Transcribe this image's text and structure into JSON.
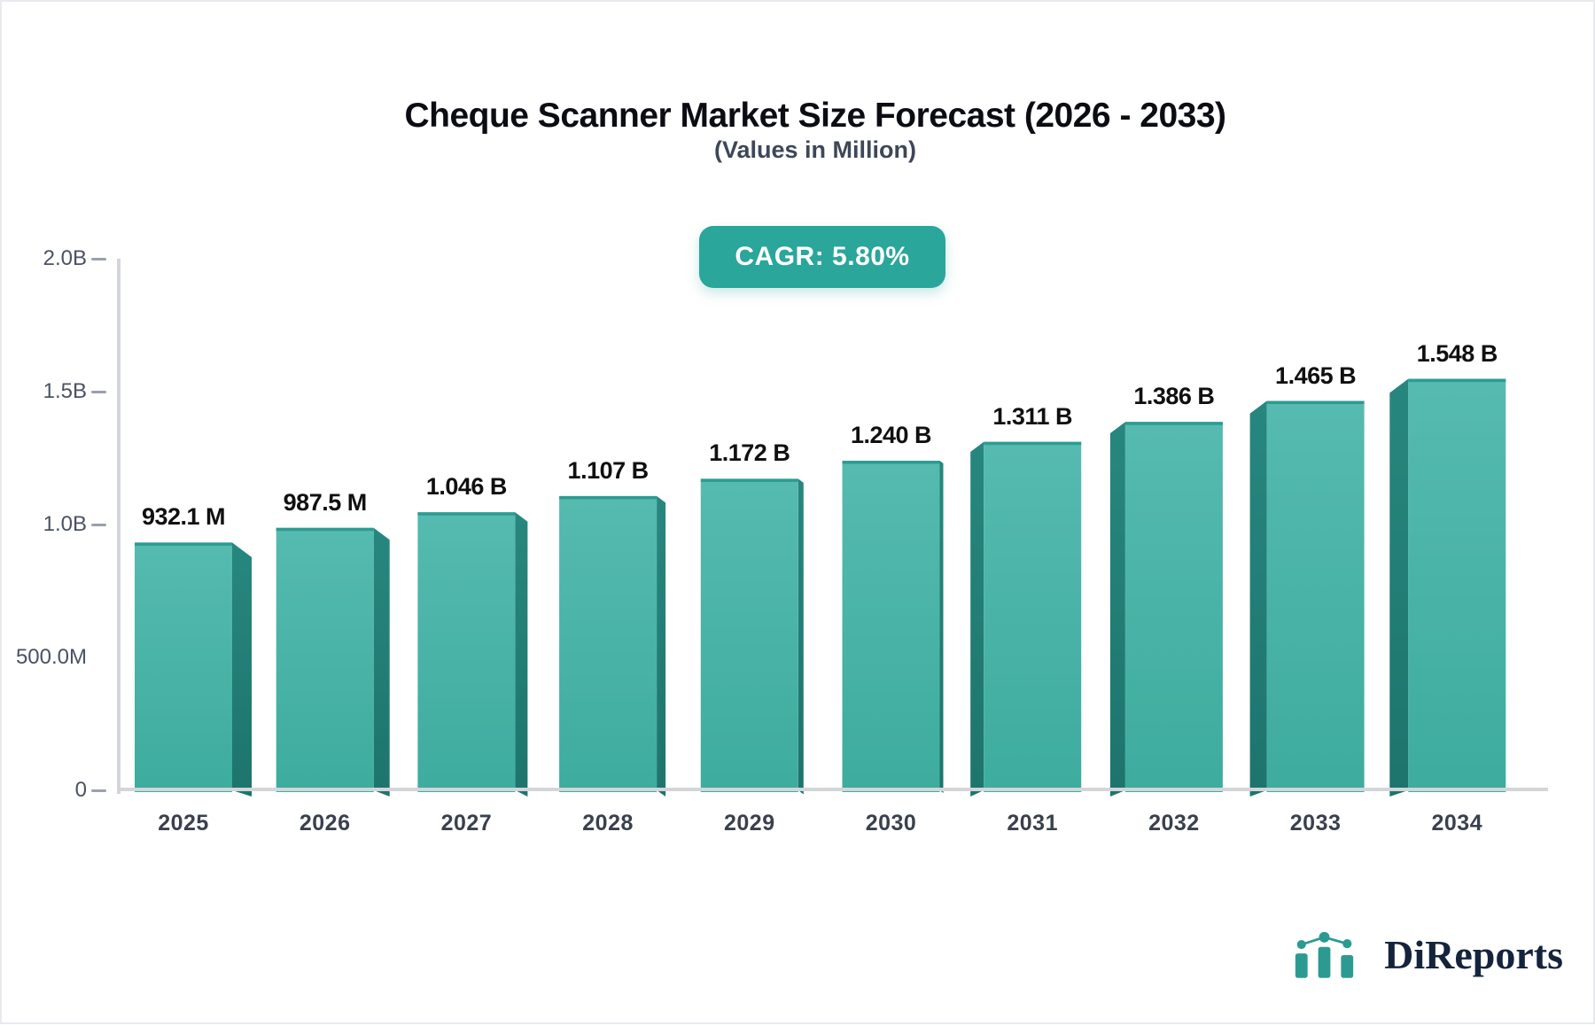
{
  "header": {
    "title": "Cheque Scanner Market Size Forecast (2026 - 2033)",
    "subtitle": "(Values in Million)",
    "badge": "CAGR: 5.80%"
  },
  "chart_data": {
    "type": "bar",
    "title": "Cheque Scanner Market Size Forecast (2026 - 2033)",
    "subtitle": "(Values in Million)",
    "cagr_badge": "CAGR: 5.80%",
    "categories": [
      "2025",
      "2026",
      "2027",
      "2028",
      "2029",
      "2030",
      "2031",
      "2032",
      "2033",
      "2034"
    ],
    "values_in_millions": [
      932.1,
      987.5,
      1046,
      1107,
      1172,
      1240,
      1311,
      1386,
      1465,
      1548
    ],
    "value_labels": [
      "932.1 M",
      "987.5 M",
      "1.046 B",
      "1.107 B",
      "1.172 B",
      "1.240 B",
      "1.311 B",
      "1.386 B",
      "1.465 B",
      "1.548 B"
    ],
    "ylim": [
      0,
      2000
    ],
    "y_axis_ticks": [
      {
        "label": "2.0B",
        "value": 2000,
        "dash": true
      },
      {
        "label": "1.5B",
        "value": 1500,
        "dash": true
      },
      {
        "label": "1.0B",
        "value": 1000,
        "dash": true
      },
      {
        "label": "500.0M",
        "value": 500,
        "dash": false
      },
      {
        "label": "0",
        "value": 0,
        "dash": true
      }
    ],
    "grid": false,
    "legend": "none",
    "style": "3d-perspective-bars"
  },
  "logo": {
    "text": "DiReports"
  },
  "colors": {
    "title": "#0c0d13",
    "subtitle": "#3e4757",
    "badge_bg": "#2aa69b",
    "badge_text": "#ffffff",
    "bar_face_top": "#56bab0",
    "bar_face_bottom": "#3dac9e",
    "bar_top_edge": "#2c9c92",
    "bar_side": "#1f7d75",
    "axis_line": "#d3d5da",
    "axis_label": "#4a5264",
    "year_label": "#39404e",
    "value_label": "#101010",
    "logo_text": "#15243c",
    "logo_icon": "#2d9a92"
  }
}
